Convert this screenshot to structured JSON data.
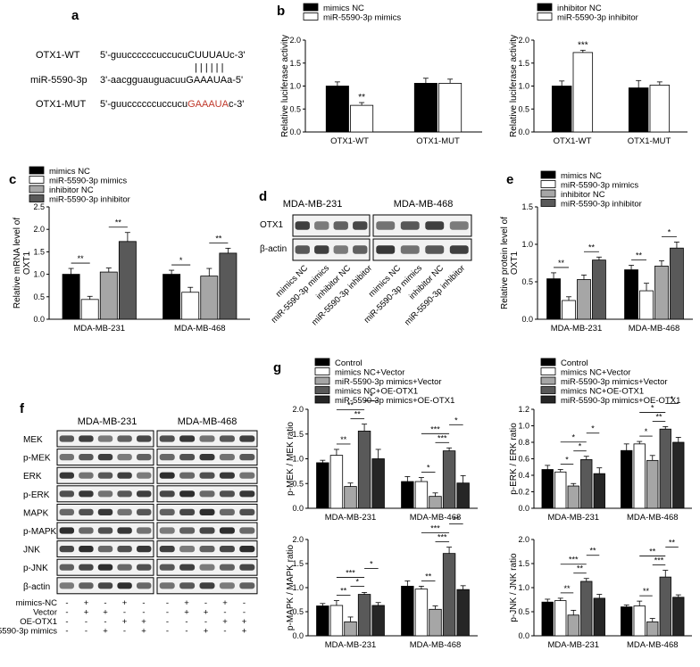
{
  "panels": {
    "a": "a",
    "b": "b",
    "c": "c",
    "d": "d",
    "e": "e",
    "f": "f",
    "g": "g"
  },
  "sequences": {
    "rows": [
      {
        "label": "OTX1-WT",
        "seq_prefix": "5'-guuccccccuccucu",
        "seq_site": "CUUUAU",
        "seq_suffix": "c-3'",
        "site_color": "#000000"
      },
      {
        "label": "miR-5590-3p",
        "seq_prefix": "3'-aacgguauguacuu",
        "seq_site": "GAAAUA",
        "seq_suffix": "a-5'",
        "site_color": "#000000"
      },
      {
        "label": "OTX1-MUT",
        "seq_prefix": "5'-guuccccccuccucu",
        "seq_site": "GAAAUA",
        "seq_suffix": "c-3'",
        "site_color": "#c0392b"
      }
    ],
    "pairing_marks": "| | | | | |"
  },
  "chart_data": [
    {
      "id": "b1",
      "type": "bar",
      "ylabel": "Relative luciferase activity",
      "ylim": [
        0,
        2.0
      ],
      "yticks": [
        "0.0",
        "0.5",
        "1.0",
        "1.5",
        "2.0"
      ],
      "categories": [
        "OTX1-WT",
        "OTX1-MUT"
      ],
      "series": [
        {
          "name": "mimics NC",
          "values": [
            1.0,
            1.06
          ],
          "errors": [
            0.09,
            0.11
          ],
          "color": "#000000"
        },
        {
          "name": "miR-5590-3p mimics",
          "values": [
            0.58,
            1.06
          ],
          "errors": [
            0.06,
            0.09
          ],
          "color": "#ffffff"
        }
      ],
      "legend": "top",
      "significance": [
        {
          "group": 0,
          "label": "**"
        }
      ]
    },
    {
      "id": "b2",
      "type": "bar",
      "ylabel": "Relative luciferase activity",
      "ylim": [
        0,
        2.0
      ],
      "yticks": [
        "0.0",
        "0.5",
        "1.0",
        "1.5",
        "2.0"
      ],
      "categories": [
        "OTX1-WT",
        "OTX1-MUT"
      ],
      "series": [
        {
          "name": "inhibitor NC",
          "values": [
            1.0,
            0.96
          ],
          "errors": [
            0.11,
            0.16
          ],
          "color": "#000000"
        },
        {
          "name": "miR-5590-3p inhibitor",
          "values": [
            1.73,
            1.02
          ],
          "errors": [
            0.05,
            0.07
          ],
          "color": "#ffffff"
        }
      ],
      "legend": "top",
      "significance": [
        {
          "group": 0,
          "label": "***"
        }
      ]
    },
    {
      "id": "c",
      "type": "bar",
      "ylabel": "Relative mRNA level of OXT1",
      "ylim": [
        0,
        2.5
      ],
      "yticks": [
        "0.0",
        "0.5",
        "1.0",
        "1.5",
        "2.0",
        "2.5"
      ],
      "categories": [
        "MDA-MB-231",
        "MDA-MB-468"
      ],
      "series": [
        {
          "name": "mimics NC",
          "values": [
            1.0,
            1.0
          ],
          "errors": [
            0.13,
            0.09
          ],
          "color": "#000000"
        },
        {
          "name": "miR-5590-3p mimics",
          "values": [
            0.44,
            0.6
          ],
          "errors": [
            0.07,
            0.11
          ],
          "color": "#ffffff"
        },
        {
          "name": "inhibitor NC",
          "values": [
            1.05,
            0.96
          ],
          "errors": [
            0.09,
            0.17
          ],
          "color": "#a6a6a6"
        },
        {
          "name": "miR-5590-3p inhibitor",
          "values": [
            1.73,
            1.47
          ],
          "errors": [
            0.2,
            0.11
          ],
          "color": "#595959"
        }
      ],
      "legend": "top-left",
      "significance": [
        {
          "group": 0,
          "from": 0,
          "to": 1,
          "label": "**"
        },
        {
          "group": 0,
          "from": 2,
          "to": 3,
          "label": "**"
        },
        {
          "group": 1,
          "from": 0,
          "to": 1,
          "label": "*"
        },
        {
          "group": 1,
          "from": 2,
          "to": 3,
          "label": "**"
        }
      ]
    },
    {
      "id": "e",
      "type": "bar",
      "ylabel": "Relative protein level of OXT1",
      "ylim": [
        0,
        1.5
      ],
      "yticks": [
        "0.0",
        "0.5",
        "1.0",
        "1.5"
      ],
      "categories": [
        "MDA-MB-231",
        "MDA-MB-468"
      ],
      "series": [
        {
          "name": "mimics NC",
          "values": [
            0.54,
            0.66
          ],
          "errors": [
            0.08,
            0.06
          ],
          "color": "#000000"
        },
        {
          "name": "miR-5590-3p mimics",
          "values": [
            0.25,
            0.38
          ],
          "errors": [
            0.05,
            0.1
          ],
          "color": "#ffffff"
        },
        {
          "name": "inhibitor NC",
          "values": [
            0.53,
            0.71
          ],
          "errors": [
            0.06,
            0.07
          ],
          "color": "#a6a6a6"
        },
        {
          "name": "miR-5590-3p inhibitor",
          "values": [
            0.79,
            0.95
          ],
          "errors": [
            0.04,
            0.08
          ],
          "color": "#595959"
        }
      ],
      "legend": "top",
      "significance": [
        {
          "group": 0,
          "from": 0,
          "to": 1,
          "label": "**"
        },
        {
          "group": 0,
          "from": 2,
          "to": 3,
          "label": "**"
        },
        {
          "group": 1,
          "from": 0,
          "to": 1,
          "label": "**"
        },
        {
          "group": 1,
          "from": 2,
          "to": 3,
          "label": "*"
        }
      ]
    },
    {
      "id": "g1",
      "type": "bar",
      "ylabel": "p-MEK / MEK ratio",
      "ylim": [
        0,
        2.0
      ],
      "yticks": [
        "0.0",
        "0.5",
        "1.0",
        "1.5",
        "2.0"
      ],
      "categories": [
        "MDA-MB-231",
        "MDA-MB-468"
      ],
      "series": [
        {
          "name": "Control",
          "values": [
            0.92,
            0.54
          ],
          "errors": [
            0.05,
            0.1
          ],
          "color": "#000000"
        },
        {
          "name": "mimics NC+Vector",
          "values": [
            1.07,
            0.54
          ],
          "errors": [
            0.12,
            0.08
          ],
          "color": "#ffffff"
        },
        {
          "name": "miR-5590-3p mimics+Vector",
          "values": [
            0.44,
            0.24
          ],
          "errors": [
            0.07,
            0.07
          ],
          "color": "#a6a6a6"
        },
        {
          "name": "mimics NC+OE-OTX1",
          "values": [
            1.56,
            1.16
          ],
          "errors": [
            0.14,
            0.06
          ],
          "color": "#595959"
        },
        {
          "name": "miR-5590-3p mimics+OE-OTX1",
          "values": [
            1.0,
            0.51
          ],
          "errors": [
            0.19,
            0.15
          ],
          "color": "#262626"
        }
      ],
      "legend": "top",
      "significance": [
        {
          "group": 0,
          "from": 1,
          "to": 2,
          "label": "**"
        },
        {
          "group": 0,
          "from": 2,
          "to": 3,
          "label": "**"
        },
        {
          "group": 0,
          "from": 1,
          "to": 3,
          "label": "**"
        },
        {
          "group": 0,
          "from": 3,
          "to": 4,
          "label": "*"
        },
        {
          "group": 1,
          "from": 1,
          "to": 2,
          "label": "*"
        },
        {
          "group": 1,
          "from": 2,
          "to": 3,
          "label": "***"
        },
        {
          "group": 1,
          "from": 1,
          "to": 3,
          "label": "***"
        },
        {
          "group": 1,
          "from": 3,
          "to": 4,
          "label": "*"
        }
      ]
    },
    {
      "id": "g2",
      "type": "bar",
      "ylabel": "p-ERK / ERK ratio",
      "ylim": [
        0,
        1.2
      ],
      "yticks": [
        "0.0",
        "0.2",
        "0.4",
        "0.6",
        "0.8",
        "1.0",
        "1.2"
      ],
      "categories": [
        "MDA-MB-231",
        "MDA-MB-468"
      ],
      "series": [
        {
          "name": "Control",
          "values": [
            0.47,
            0.7
          ],
          "errors": [
            0.05,
            0.08
          ],
          "color": "#000000"
        },
        {
          "name": "mimics NC+Vector",
          "values": [
            0.44,
            0.78
          ],
          "errors": [
            0.03,
            0.03
          ],
          "color": "#ffffff"
        },
        {
          "name": "miR-5590-3p mimics+Vector",
          "values": [
            0.27,
            0.58
          ],
          "errors": [
            0.03,
            0.06
          ],
          "color": "#a6a6a6"
        },
        {
          "name": "mimics NC+OE-OTX1",
          "values": [
            0.59,
            0.96
          ],
          "errors": [
            0.04,
            0.03
          ],
          "color": "#595959"
        },
        {
          "name": "miR-5590-3p mimics+OE-OTX1",
          "values": [
            0.42,
            0.8
          ],
          "errors": [
            0.07,
            0.06
          ],
          "color": "#262626"
        }
      ],
      "legend": "top",
      "significance": [
        {
          "group": 0,
          "from": 1,
          "to": 2,
          "label": "*"
        },
        {
          "group": 0,
          "from": 2,
          "to": 3,
          "label": "*"
        },
        {
          "group": 0,
          "from": 1,
          "to": 3,
          "label": "*"
        },
        {
          "group": 0,
          "from": 3,
          "to": 4,
          "label": "*"
        },
        {
          "group": 1,
          "from": 1,
          "to": 2,
          "label": "*"
        },
        {
          "group": 1,
          "from": 2,
          "to": 3,
          "label": "**"
        },
        {
          "group": 1,
          "from": 1,
          "to": 3,
          "label": "*"
        },
        {
          "group": 1,
          "from": 3,
          "to": 4,
          "label": "*"
        }
      ]
    },
    {
      "id": "g3",
      "type": "bar",
      "ylabel": "p-MAPK / MAPK ratio",
      "ylim": [
        0,
        2.0
      ],
      "yticks": [
        "0.0",
        "0.5",
        "1.0",
        "1.5",
        "2.0"
      ],
      "categories": [
        "MDA-MB-231",
        "MDA-MB-468"
      ],
      "series": [
        {
          "name": "Control",
          "values": [
            0.62,
            1.03
          ],
          "errors": [
            0.05,
            0.11
          ],
          "color": "#000000"
        },
        {
          "name": "mimics NC+Vector",
          "values": [
            0.63,
            0.97
          ],
          "errors": [
            0.1,
            0.06
          ],
          "color": "#ffffff"
        },
        {
          "name": "miR-5590-3p mimics+Vector",
          "values": [
            0.29,
            0.55
          ],
          "errors": [
            0.1,
            0.07
          ],
          "color": "#a6a6a6"
        },
        {
          "name": "mimics NC+OE-OTX1",
          "values": [
            0.86,
            1.71
          ],
          "errors": [
            0.04,
            0.13
          ],
          "color": "#595959"
        },
        {
          "name": "miR-5590-3p mimics+OE-OTX1",
          "values": [
            0.63,
            0.96
          ],
          "errors": [
            0.06,
            0.08
          ],
          "color": "#262626"
        }
      ],
      "legend": "none",
      "significance": [
        {
          "group": 0,
          "from": 1,
          "to": 2,
          "label": "**"
        },
        {
          "group": 0,
          "from": 2,
          "to": 3,
          "label": "*"
        },
        {
          "group": 0,
          "from": 1,
          "to": 3,
          "label": "***"
        },
        {
          "group": 0,
          "from": 3,
          "to": 4,
          "label": "*"
        },
        {
          "group": 1,
          "from": 1,
          "to": 2,
          "label": "**"
        },
        {
          "group": 1,
          "from": 2,
          "to": 3,
          "label": "***"
        },
        {
          "group": 1,
          "from": 1,
          "to": 3,
          "label": "***"
        },
        {
          "group": 1,
          "from": 3,
          "to": 4,
          "label": "**"
        }
      ]
    },
    {
      "id": "g4",
      "type": "bar",
      "ylabel": "p-JNK / JNK ratio",
      "ylim": [
        0,
        2.0
      ],
      "yticks": [
        "0.0",
        "0.5",
        "1.0",
        "1.5",
        "2.0"
      ],
      "categories": [
        "MDA-MB-231",
        "MDA-MB-468"
      ],
      "series": [
        {
          "name": "Control",
          "values": [
            0.7,
            0.6
          ],
          "errors": [
            0.06,
            0.04
          ],
          "color": "#000000"
        },
        {
          "name": "mimics NC+Vector",
          "values": [
            0.73,
            0.62
          ],
          "errors": [
            0.05,
            0.1
          ],
          "color": "#ffffff"
        },
        {
          "name": "miR-5590-3p mimics+Vector",
          "values": [
            0.43,
            0.29
          ],
          "errors": [
            0.1,
            0.07
          ],
          "color": "#a6a6a6"
        },
        {
          "name": "mimics NC+OE-OTX1",
          "values": [
            1.13,
            1.22
          ],
          "errors": [
            0.06,
            0.14
          ],
          "color": "#595959"
        },
        {
          "name": "miR-5590-3p mimics+OE-OTX1",
          "values": [
            0.78,
            0.8
          ],
          "errors": [
            0.08,
            0.05
          ],
          "color": "#262626"
        }
      ],
      "legend": "none",
      "significance": [
        {
          "group": 0,
          "from": 1,
          "to": 2,
          "label": "**"
        },
        {
          "group": 0,
          "from": 2,
          "to": 3,
          "label": "**"
        },
        {
          "group": 0,
          "from": 1,
          "to": 3,
          "label": "***"
        },
        {
          "group": 0,
          "from": 3,
          "to": 4,
          "label": "**"
        },
        {
          "group": 1,
          "from": 1,
          "to": 2,
          "label": "**"
        },
        {
          "group": 1,
          "from": 2,
          "to": 3,
          "label": "***"
        },
        {
          "group": 1,
          "from": 1,
          "to": 3,
          "label": "**"
        },
        {
          "group": 1,
          "from": 3,
          "to": 4,
          "label": "**"
        }
      ]
    }
  ],
  "blot_d": {
    "cell_lines": [
      "MDA-MB-231",
      "MDA-MB-468"
    ],
    "rows": [
      "OTX1",
      "β-actin"
    ],
    "lanes": [
      "mimics NC",
      "miR-5590-3p mimics",
      "inhibitor NC",
      "miR-5590-3p inhibitor",
      "mimics NC",
      "miR-5590-3p mimics",
      "inhibitor NC",
      "miR-5590-3p inhibitor"
    ]
  },
  "blot_f": {
    "cell_lines": [
      "MDA-MB-231",
      "MDA-MB-468"
    ],
    "rows": [
      "MEK",
      "p-MEK",
      "ERK",
      "p-ERK",
      "MAPK",
      "p-MAPK",
      "JNK",
      "p-JNK",
      "β-actin"
    ],
    "conditions": [
      {
        "label": "mimics-NC",
        "marks": [
          "-",
          "+",
          "-",
          "+",
          "-",
          "-",
          "+",
          "-",
          "+",
          "-"
        ]
      },
      {
        "label": "Vector",
        "marks": [
          "-",
          "+",
          "+",
          "-",
          "-",
          "-",
          "+",
          "+",
          "-",
          "-"
        ]
      },
      {
        "label": "OE-OTX1",
        "marks": [
          "-",
          "-",
          "-",
          "+",
          "+",
          "-",
          "-",
          "-",
          "+",
          "+"
        ]
      },
      {
        "label": "miR-5590-3p mimics",
        "marks": [
          "-",
          "-",
          "+",
          "-",
          "+",
          "-",
          "-",
          "+",
          "-",
          "+"
        ]
      }
    ]
  }
}
